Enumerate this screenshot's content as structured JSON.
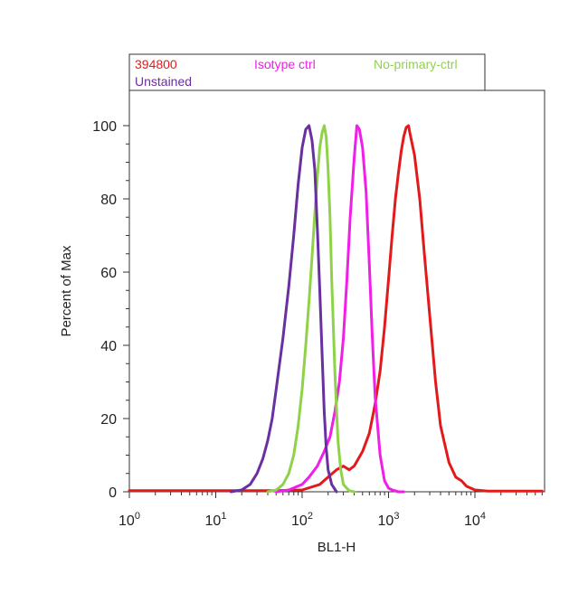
{
  "chart_data": {
    "type": "line",
    "xlabel": "BL1-H",
    "ylabel": "Percent of Max",
    "x_scale": "log",
    "xlim": [
      1,
      60000
    ],
    "ylim": [
      0,
      108
    ],
    "x_ticks": [
      {
        "value": 1,
        "base": "10",
        "exp": "0"
      },
      {
        "value": 10,
        "base": "10",
        "exp": "1"
      },
      {
        "value": 100,
        "base": "10",
        "exp": "2"
      },
      {
        "value": 1000,
        "base": "10",
        "exp": "3"
      },
      {
        "value": 10000,
        "base": "10",
        "exp": "4"
      }
    ],
    "y_ticks": [
      "0",
      "20",
      "40",
      "60",
      "80",
      "100"
    ],
    "grid": false,
    "legend_position": "top-left-above",
    "series": [
      {
        "name": "394800",
        "color": "#e31a1c",
        "x": [
          1,
          10,
          50,
          100,
          160,
          200,
          250,
          300,
          350,
          400,
          500,
          600,
          700,
          800,
          900,
          1000,
          1100,
          1200,
          1300,
          1400,
          1500,
          1600,
          1700,
          1800,
          2000,
          2300,
          2600,
          3000,
          3500,
          4000,
          5000,
          6000,
          7000,
          8000,
          10000,
          14000,
          60000
        ],
        "y": [
          0.3,
          0.3,
          0.3,
          0.5,
          2,
          4,
          6,
          7,
          6,
          7,
          11,
          16,
          24,
          33,
          45,
          58,
          70,
          80,
          87,
          93,
          97,
          99.5,
          100,
          97,
          92,
          80,
          65,
          48,
          30,
          18,
          8,
          4,
          3,
          1.5,
          0.5,
          0.2,
          0.2
        ]
      },
      {
        "name": "Isotype ctrl",
        "color": "#f01ee6",
        "x": [
          50,
          70,
          100,
          120,
          150,
          180,
          210,
          240,
          270,
          300,
          330,
          360,
          400,
          430,
          460,
          500,
          550,
          600,
          650,
          700,
          800,
          900,
          1000,
          1100,
          1300,
          1500
        ],
        "y": [
          0,
          0.5,
          2,
          4,
          7,
          11,
          15,
          22,
          30,
          42,
          58,
          75,
          91,
          100,
          99,
          94,
          82,
          62,
          42,
          26,
          10,
          3,
          1,
          0.5,
          0,
          0
        ]
      },
      {
        "name": "No-primary-ctrl",
        "color": "#8fd24a",
        "x": [
          40,
          50,
          60,
          70,
          80,
          90,
          100,
          110,
          120,
          130,
          140,
          150,
          160,
          170,
          180,
          190,
          200,
          210,
          220,
          240,
          260,
          280,
          300,
          350,
          400
        ],
        "y": [
          0,
          0.5,
          2,
          5,
          10,
          18,
          28,
          40,
          52,
          64,
          76,
          86,
          94,
          98,
          100,
          97,
          88,
          75,
          58,
          32,
          14,
          6,
          2,
          0.3,
          0
        ]
      },
      {
        "name": "Unstained",
        "color": "#6a2fa0",
        "x": [
          15,
          20,
          25,
          30,
          35,
          40,
          45,
          50,
          60,
          70,
          80,
          90,
          100,
          110,
          120,
          130,
          140,
          150,
          160,
          170,
          180,
          190,
          200,
          220,
          250
        ],
        "y": [
          0,
          0.5,
          2,
          5,
          9,
          14,
          20,
          28,
          42,
          56,
          70,
          84,
          94,
          99,
          100,
          96,
          88,
          72,
          55,
          38,
          22,
          12,
          6,
          2,
          0
        ]
      }
    ]
  }
}
